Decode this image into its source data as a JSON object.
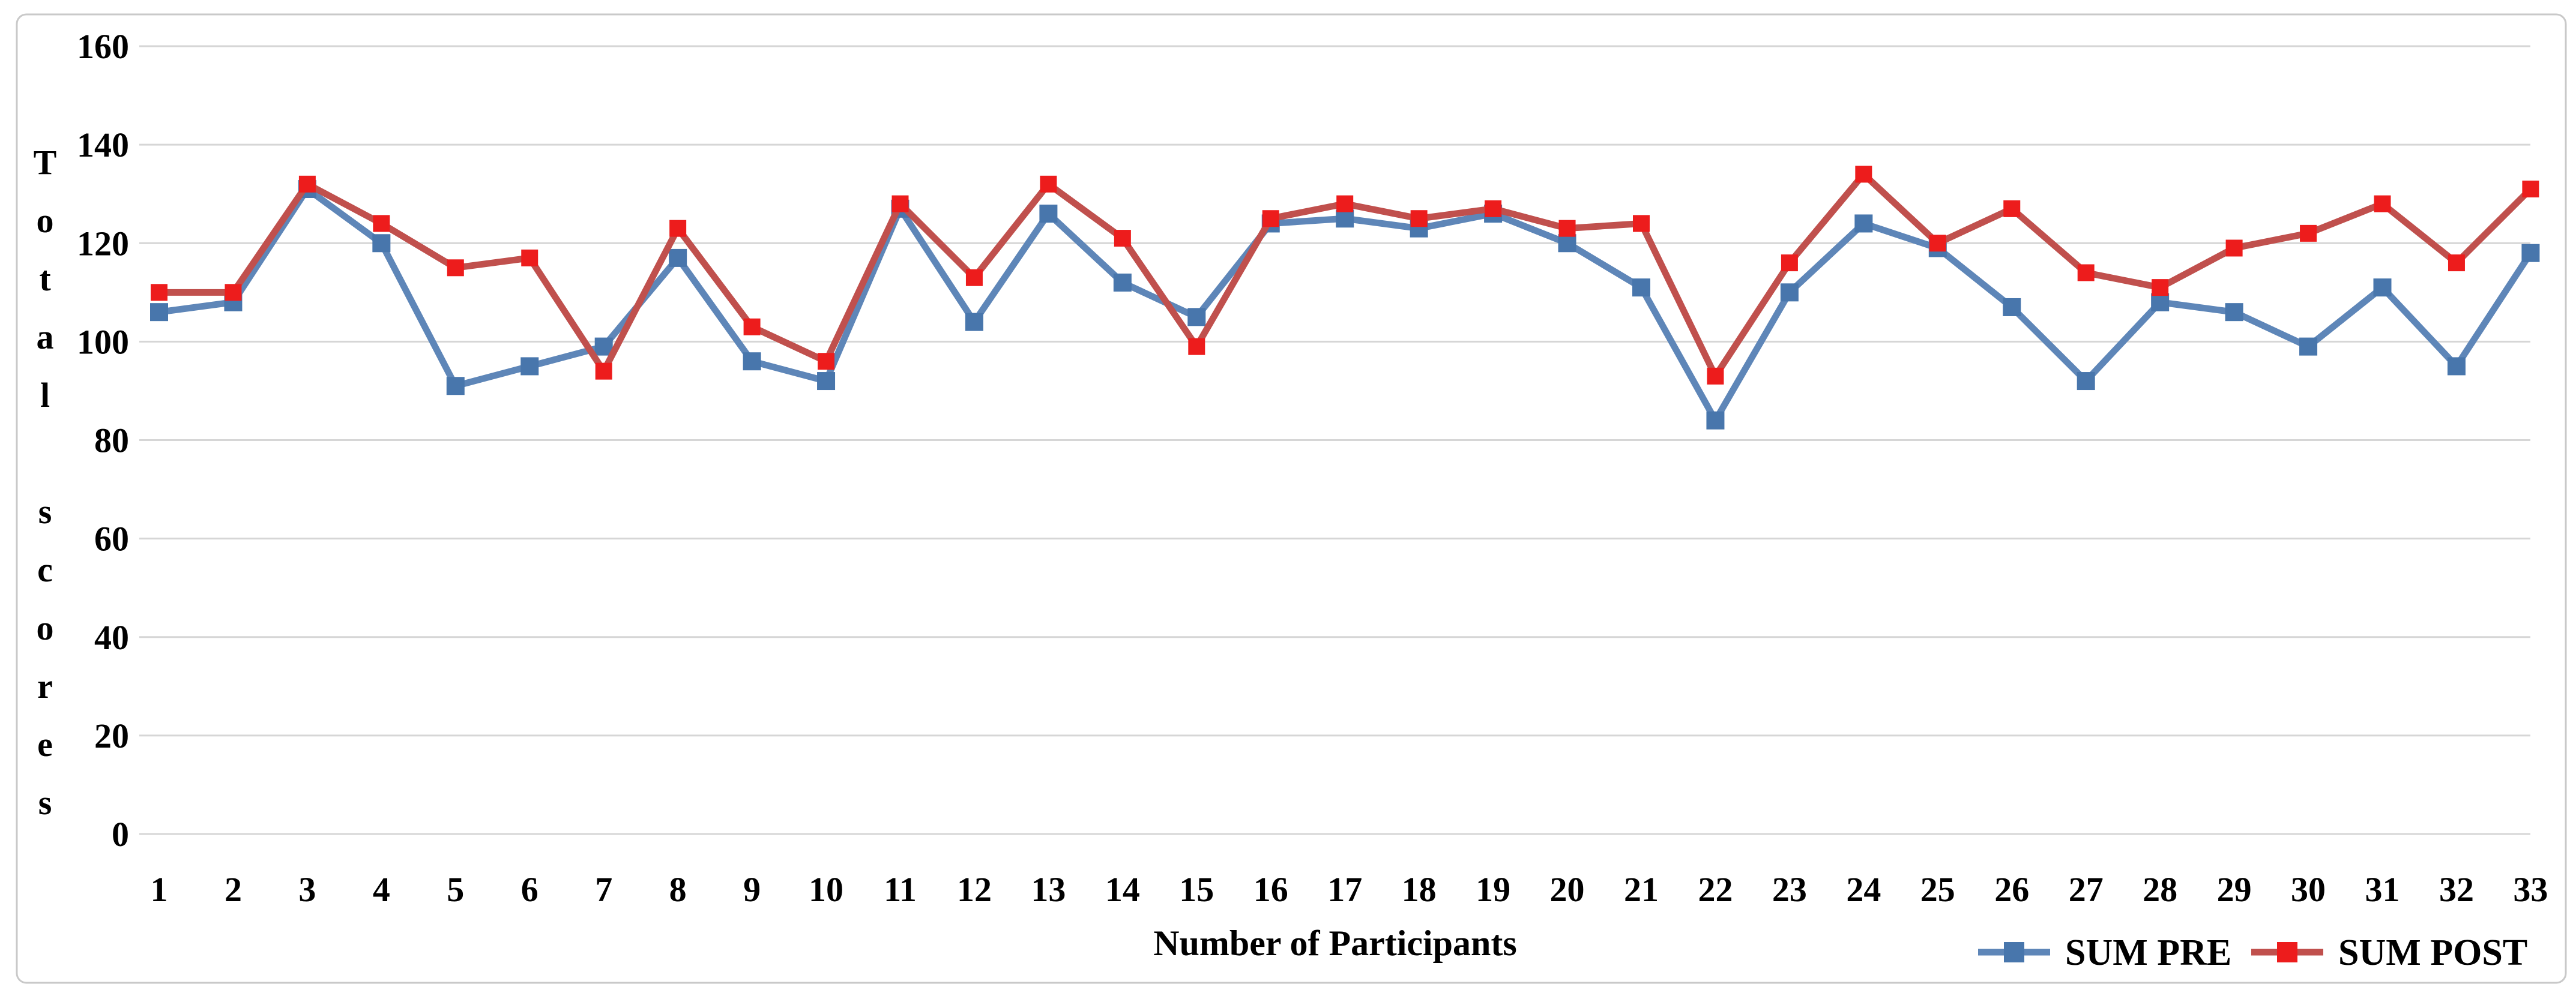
{
  "chart_data": {
    "type": "line",
    "title": "",
    "xlabel": "Number of Participants",
    "ylabel": "Total scores",
    "ylabel_stacked_letters": "Total scores",
    "ylim": [
      0,
      160
    ],
    "yticks": [
      0,
      20,
      40,
      60,
      80,
      100,
      120,
      140,
      160
    ],
    "grid": "horizontal",
    "legend_position": "bottom-right",
    "categories": [
      1,
      2,
      3,
      4,
      5,
      6,
      7,
      8,
      9,
      10,
      11,
      12,
      13,
      14,
      15,
      16,
      17,
      18,
      19,
      20,
      21,
      22,
      23,
      24,
      25,
      26,
      27,
      28,
      29,
      30,
      31,
      32,
      33
    ],
    "series": [
      {
        "name": "SUM PRE",
        "marker": "square",
        "values": [
          106,
          108,
          131,
          120,
          91,
          95,
          99,
          117,
          96,
          92,
          127,
          104,
          126,
          112,
          105,
          124,
          125,
          123,
          126,
          120,
          111,
          84,
          110,
          124,
          119,
          107,
          92,
          108,
          106,
          99,
          111,
          95,
          118
        ]
      },
      {
        "name": "SUM POST",
        "marker": "square",
        "values": [
          110,
          110,
          132,
          124,
          115,
          117,
          94,
          123,
          103,
          96,
          128,
          113,
          132,
          121,
          99,
          125,
          128,
          125,
          127,
          123,
          124,
          93,
          116,
          134,
          120,
          127,
          114,
          111,
          119,
          122,
          128,
          116,
          131
        ]
      }
    ]
  },
  "colors": {
    "pre_line": "#5E86B8",
    "pre_marker": "#4876AC",
    "post_line": "#C0504D",
    "post_marker": "#ED1C1C",
    "gridline": "#D6D6D6",
    "frame_border": "#C9C9C9",
    "background": "#FFFFFF",
    "text": "#000000"
  },
  "legend": {
    "items": [
      {
        "label": "SUM PRE",
        "series": 0
      },
      {
        "label": "SUM POST",
        "series": 1
      }
    ]
  }
}
